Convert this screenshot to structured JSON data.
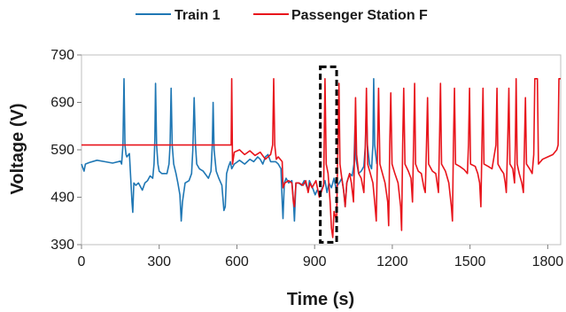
{
  "chart_data": {
    "type": "line",
    "title": "",
    "xlabel": "Time (s)",
    "ylabel": "Voltage (V)",
    "xlim": [
      0,
      1850
    ],
    "ylim": [
      390,
      790
    ],
    "xticks": [
      0,
      300,
      600,
      900,
      1200,
      1500,
      1800
    ],
    "yticks": [
      390,
      490,
      590,
      690,
      790
    ],
    "grid": false,
    "legend_position": "top-center",
    "highlight_box": {
      "x": [
        922,
        985
      ],
      "y": [
        395,
        765
      ],
      "style": "dashed"
    },
    "series": [
      {
        "name": "Train 1",
        "color": "#1f77b4",
        "points": [
          [
            0,
            560
          ],
          [
            10,
            545
          ],
          [
            15,
            560
          ],
          [
            30,
            563
          ],
          [
            60,
            568
          ],
          [
            90,
            565
          ],
          [
            120,
            562
          ],
          [
            150,
            566
          ],
          [
            155,
            560
          ],
          [
            160,
            600
          ],
          [
            164,
            740
          ],
          [
            168,
            600
          ],
          [
            172,
            580
          ],
          [
            175,
            575
          ],
          [
            185,
            582
          ],
          [
            195,
            480
          ],
          [
            198,
            458
          ],
          [
            202,
            520
          ],
          [
            210,
            515
          ],
          [
            220,
            520
          ],
          [
            235,
            505
          ],
          [
            245,
            520
          ],
          [
            255,
            525
          ],
          [
            265,
            535
          ],
          [
            275,
            530
          ],
          [
            280,
            560
          ],
          [
            283,
            610
          ],
          [
            286,
            730
          ],
          [
            290,
            600
          ],
          [
            295,
            560
          ],
          [
            300,
            545
          ],
          [
            310,
            540
          ],
          [
            330,
            540
          ],
          [
            338,
            560
          ],
          [
            342,
            600
          ],
          [
            346,
            720
          ],
          [
            350,
            600
          ],
          [
            356,
            560
          ],
          [
            365,
            540
          ],
          [
            372,
            520
          ],
          [
            380,
            495
          ],
          [
            385,
            440
          ],
          [
            390,
            480
          ],
          [
            400,
            520
          ],
          [
            415,
            525
          ],
          [
            425,
            540
          ],
          [
            430,
            590
          ],
          [
            435,
            700
          ],
          [
            440,
            600
          ],
          [
            445,
            560
          ],
          [
            455,
            550
          ],
          [
            470,
            545
          ],
          [
            490,
            530
          ],
          [
            500,
            545
          ],
          [
            505,
            600
          ],
          [
            508,
            690
          ],
          [
            512,
            590
          ],
          [
            520,
            545
          ],
          [
            530,
            530
          ],
          [
            542,
            515
          ],
          [
            550,
            462
          ],
          [
            555,
            470
          ],
          [
            560,
            540
          ],
          [
            568,
            555
          ],
          [
            575,
            565
          ],
          [
            580,
            550
          ],
          [
            590,
            560
          ],
          [
            610,
            568
          ],
          [
            630,
            560
          ],
          [
            650,
            570
          ],
          [
            665,
            565
          ],
          [
            680,
            575
          ],
          [
            690,
            570
          ],
          [
            700,
            560
          ],
          [
            710,
            575
          ],
          [
            720,
            580
          ],
          [
            730,
            565
          ],
          [
            750,
            565
          ],
          [
            760,
            560
          ],
          [
            770,
            550
          ],
          [
            775,
            480
          ],
          [
            778,
            445
          ],
          [
            783,
            520
          ],
          [
            790,
            530
          ],
          [
            800,
            520
          ],
          [
            812,
            525
          ],
          [
            818,
            485
          ],
          [
            822,
            440
          ],
          [
            828,
            520
          ],
          [
            838,
            520
          ],
          [
            850,
            515
          ],
          [
            860,
            525
          ],
          [
            875,
            505
          ],
          [
            880,
            525
          ],
          [
            892,
            510
          ],
          [
            902,
            495
          ],
          [
            910,
            505
          ],
          [
            920,
            500
          ],
          [
            930,
            510
          ],
          [
            940,
            525
          ],
          [
            948,
            500
          ],
          [
            955,
            520
          ],
          [
            965,
            510
          ],
          [
            975,
            530
          ],
          [
            982,
            510
          ],
          [
            995,
            520
          ],
          [
            1005,
            530
          ],
          [
            1012,
            505
          ],
          [
            1018,
            470
          ],
          [
            1024,
            520
          ],
          [
            1035,
            540
          ],
          [
            1045,
            535
          ],
          [
            1052,
            560
          ],
          [
            1056,
            640
          ],
          [
            1060,
            570
          ],
          [
            1070,
            540
          ],
          [
            1080,
            545
          ],
          [
            1090,
            555
          ],
          [
            1096,
            600
          ],
          [
            1100,
            690
          ],
          [
            1104,
            600
          ],
          [
            1112,
            560
          ],
          [
            1120,
            550
          ],
          [
            1125,
            600
          ],
          [
            1128,
            740
          ],
          [
            1132,
            600
          ],
          [
            1140,
            560
          ]
        ]
      },
      {
        "name": "Passenger Station F",
        "color": "#e8141b",
        "points": [
          [
            0,
            600
          ],
          [
            578,
            600
          ],
          [
            580,
            740
          ],
          [
            583,
            560
          ],
          [
            590,
            585
          ],
          [
            610,
            590
          ],
          [
            630,
            580
          ],
          [
            650,
            588
          ],
          [
            670,
            578
          ],
          [
            690,
            585
          ],
          [
            710,
            570
          ],
          [
            730,
            580
          ],
          [
            738,
            600
          ],
          [
            742,
            740
          ],
          [
            746,
            600
          ],
          [
            752,
            570
          ],
          [
            760,
            575
          ],
          [
            775,
            565
          ],
          [
            778,
            510
          ],
          [
            785,
            520
          ],
          [
            800,
            525
          ],
          [
            812,
            520
          ],
          [
            818,
            480
          ],
          [
            822,
            470
          ],
          [
            828,
            520
          ],
          [
            840,
            520
          ],
          [
            855,
            515
          ],
          [
            866,
            525
          ],
          [
            875,
            500
          ],
          [
            882,
            520
          ],
          [
            890,
            510
          ],
          [
            905,
            525
          ],
          [
            918,
            490
          ],
          [
            925,
            500
          ],
          [
            935,
            515
          ],
          [
            940,
            740
          ],
          [
            945,
            560
          ],
          [
            952,
            540
          ],
          [
            960,
            480
          ],
          [
            965,
            425
          ],
          [
            970,
            405
          ],
          [
            975,
            460
          ],
          [
            980,
            450
          ],
          [
            985,
            440
          ],
          [
            990,
            600
          ],
          [
            994,
            730
          ],
          [
            998,
            560
          ],
          [
            1005,
            530
          ],
          [
            1012,
            505
          ],
          [
            1018,
            470
          ],
          [
            1024,
            520
          ],
          [
            1035,
            540
          ],
          [
            1042,
            520
          ],
          [
            1050,
            480
          ],
          [
            1055,
            600
          ],
          [
            1058,
            700
          ],
          [
            1062,
            580
          ],
          [
            1070,
            540
          ],
          [
            1080,
            530
          ],
          [
            1090,
            500
          ],
          [
            1096,
            600
          ],
          [
            1100,
            720
          ],
          [
            1105,
            560
          ],
          [
            1115,
            540
          ],
          [
            1125,
            520
          ],
          [
            1132,
            480
          ],
          [
            1138,
            440
          ],
          [
            1143,
            600
          ],
          [
            1147,
            720
          ],
          [
            1152,
            560
          ],
          [
            1162,
            540
          ],
          [
            1172,
            520
          ],
          [
            1182,
            480
          ],
          [
            1186,
            430
          ],
          [
            1190,
            600
          ],
          [
            1194,
            710
          ],
          [
            1199,
            560
          ],
          [
            1210,
            540
          ],
          [
            1222,
            520
          ],
          [
            1232,
            470
          ],
          [
            1236,
            420
          ],
          [
            1240,
            600
          ],
          [
            1244,
            720
          ],
          [
            1249,
            560
          ],
          [
            1262,
            545
          ],
          [
            1272,
            530
          ],
          [
            1278,
            480
          ],
          [
            1282,
            600
          ],
          [
            1286,
            730
          ],
          [
            1290,
            560
          ],
          [
            1300,
            545
          ],
          [
            1312,
            540
          ],
          [
            1322,
            510
          ],
          [
            1327,
            500
          ],
          [
            1332,
            600
          ],
          [
            1336,
            700
          ],
          [
            1340,
            560
          ],
          [
            1355,
            545
          ],
          [
            1368,
            540
          ],
          [
            1378,
            500
          ],
          [
            1382,
            600
          ],
          [
            1386,
            730
          ],
          [
            1390,
            560
          ],
          [
            1405,
            545
          ],
          [
            1418,
            520
          ],
          [
            1428,
            470
          ],
          [
            1432,
            440
          ],
          [
            1436,
            600
          ],
          [
            1440,
            720
          ],
          [
            1444,
            560
          ],
          [
            1460,
            555
          ],
          [
            1478,
            548
          ],
          [
            1490,
            540
          ],
          [
            1494,
            600
          ],
          [
            1498,
            720
          ],
          [
            1502,
            560
          ],
          [
            1520,
            555
          ],
          [
            1530,
            540
          ],
          [
            1537,
            520
          ],
          [
            1542,
            470
          ],
          [
            1546,
            600
          ],
          [
            1550,
            720
          ],
          [
            1554,
            560
          ],
          [
            1570,
            555
          ],
          [
            1585,
            550
          ],
          [
            1600,
            600
          ],
          [
            1604,
            720
          ],
          [
            1608,
            560
          ],
          [
            1620,
            548
          ],
          [
            1630,
            540
          ],
          [
            1636,
            520
          ],
          [
            1640,
            500
          ],
          [
            1645,
            600
          ],
          [
            1650,
            720
          ],
          [
            1654,
            560
          ],
          [
            1665,
            550
          ],
          [
            1672,
            520
          ],
          [
            1675,
            600
          ],
          [
            1678,
            740
          ],
          [
            1682,
            560
          ],
          [
            1690,
            540
          ],
          [
            1700,
            520
          ],
          [
            1706,
            500
          ],
          [
            1710,
            600
          ],
          [
            1714,
            700
          ],
          [
            1718,
            560
          ],
          [
            1730,
            550
          ],
          [
            1740,
            540
          ],
          [
            1746,
            580
          ],
          [
            1750,
            740
          ],
          [
            1760,
            740
          ],
          [
            1764,
            560
          ],
          [
            1780,
            570
          ],
          [
            1800,
            575
          ],
          [
            1820,
            580
          ],
          [
            1835,
            590
          ],
          [
            1840,
            600
          ],
          [
            1843,
            740
          ],
          [
            1850,
            740
          ]
        ]
      }
    ]
  }
}
